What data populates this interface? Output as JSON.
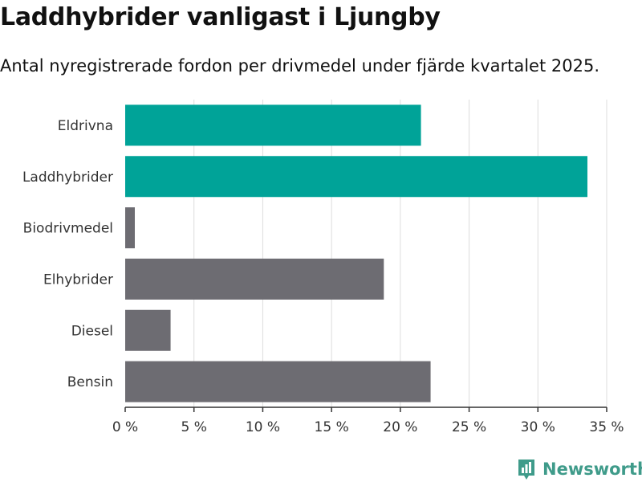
{
  "title": "Laddhybrider vanligast i Ljungby",
  "subtitle": "Antal nyregistrerade fordon per drivmedel under fjärde kvartalet 2025.",
  "brand": {
    "name": "Newsworthy",
    "color": "#3f9b8a",
    "icon": "newsworthy-logo-icon"
  },
  "colors": {
    "highlight": "#00a398",
    "default": "#6d6c72",
    "grid": "#dddddd",
    "axis": "#333333"
  },
  "chart_data": {
    "type": "bar",
    "orientation": "horizontal",
    "categories": [
      "Eldrivna",
      "Laddhybrider",
      "Biodrivmedel",
      "Elhybrider",
      "Diesel",
      "Bensin"
    ],
    "values": [
      21.5,
      33.6,
      0.7,
      18.8,
      3.3,
      22.2
    ],
    "highlighted": [
      true,
      true,
      false,
      false,
      false,
      false
    ],
    "xlim": [
      0,
      35
    ],
    "xticks": [
      0,
      5,
      10,
      15,
      20,
      25,
      30,
      35
    ],
    "xtick_labels": [
      "0 %",
      "5 %",
      "10 %",
      "15 %",
      "20 %",
      "25 %",
      "30 %",
      "35 %"
    ],
    "grid": true,
    "legend": "none"
  }
}
